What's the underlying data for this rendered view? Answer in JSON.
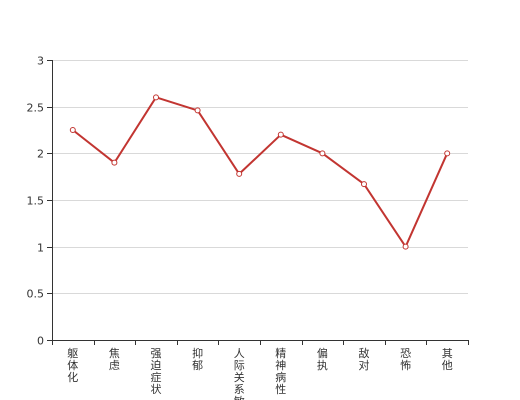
{
  "chart_data": {
    "type": "line",
    "categories": [
      "躯体化",
      "焦虑",
      "强迫症状",
      "抑郁",
      "人际关系敏感",
      "精神病性",
      "偏执",
      "敌对",
      "恐怖",
      "其他"
    ],
    "values": [
      2.25,
      1.9,
      2.6,
      2.46,
      1.78,
      2.2,
      2.0,
      1.67,
      1.0,
      2.0
    ],
    "ylim": [
      0,
      3
    ],
    "yticks": [
      "0",
      "0.5",
      "1",
      "1.5",
      "2",
      "2.5",
      "3"
    ],
    "grid": true,
    "series_color": "#c23531"
  }
}
